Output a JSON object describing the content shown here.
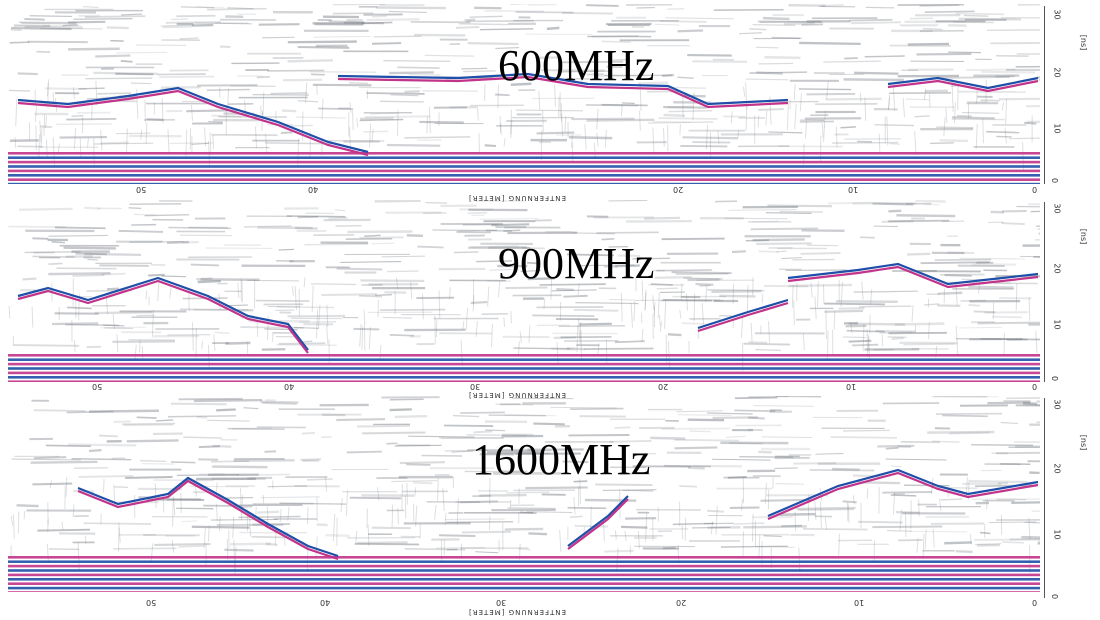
{
  "panels": [
    {
      "frequency_label": "600MHz",
      "x_axis_label": "ENTFERNUNG [METER]",
      "x_ticks": [
        "50",
        "40",
        "20",
        "10",
        "0"
      ],
      "y_axis_label": "[ns]",
      "y_ticks": [
        "30",
        "20",
        "10",
        "0"
      ]
    },
    {
      "frequency_label": "900MHz",
      "x_axis_label": "ENTFERNUNG [METER]",
      "x_ticks": [
        "50",
        "40",
        "30",
        "20",
        "10",
        "0"
      ],
      "y_axis_label": "[ns]",
      "y_ticks": [
        "30",
        "20",
        "10",
        "0"
      ]
    },
    {
      "frequency_label": "1600MHz",
      "x_axis_label": "ENTFERNUNG [METER]",
      "x_ticks": [
        "50",
        "40",
        "30",
        "20",
        "10",
        "0"
      ],
      "y_axis_label": "[ns]",
      "y_ticks": [
        "30",
        "20",
        "10",
        "0"
      ]
    }
  ],
  "colors": {
    "background": "#ffffff",
    "positive_reflection": "#1f4fa8",
    "negative_reflection": "#c2338a",
    "noise": "#7a7f86"
  }
}
